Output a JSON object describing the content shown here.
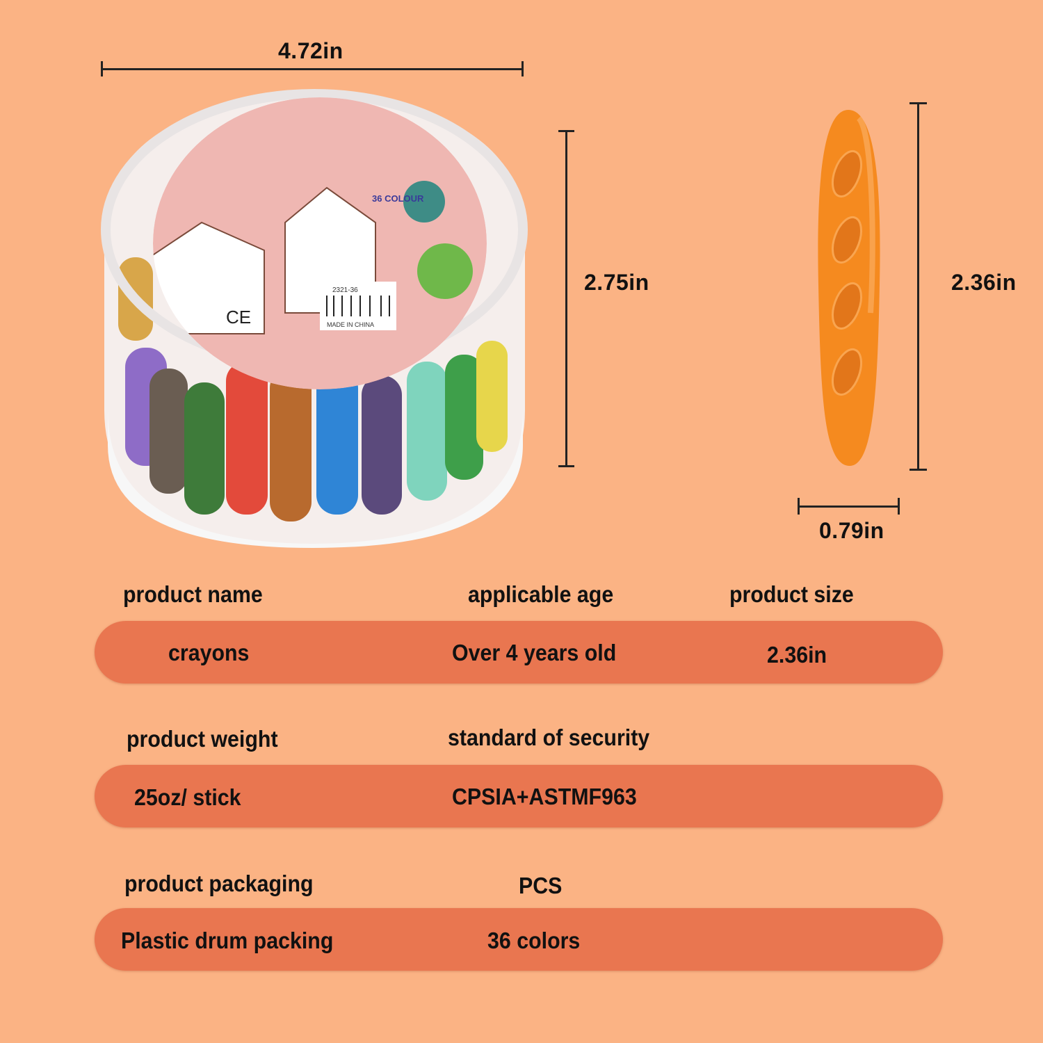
{
  "dimensions": {
    "drum_width": "4.72in",
    "drum_height": "2.75in",
    "crayon_length": "2.36in",
    "crayon_width": "0.79in"
  },
  "product_image": {
    "label_lettering": [
      "36 COLOUR",
      "2321-36",
      "MADE IN CHINA"
    ],
    "crayon_color": "#F58A1F"
  },
  "spec_rows": [
    {
      "labels": [
        "product name",
        "applicable age",
        "product size"
      ],
      "values": [
        "crayons",
        "Over 4 years old",
        "2.36in"
      ]
    },
    {
      "labels": [
        "product weight",
        "standard of security"
      ],
      "values": [
        "25oz/ stick",
        "CPSIA+ASTMF963"
      ]
    },
    {
      "labels": [
        "product packaging",
        "PCS"
      ],
      "values": [
        "Plastic drum packing",
        "36 colors"
      ]
    }
  ],
  "colors": {
    "background": "#FBB384",
    "pill": "#E97650",
    "text": "#111111"
  }
}
